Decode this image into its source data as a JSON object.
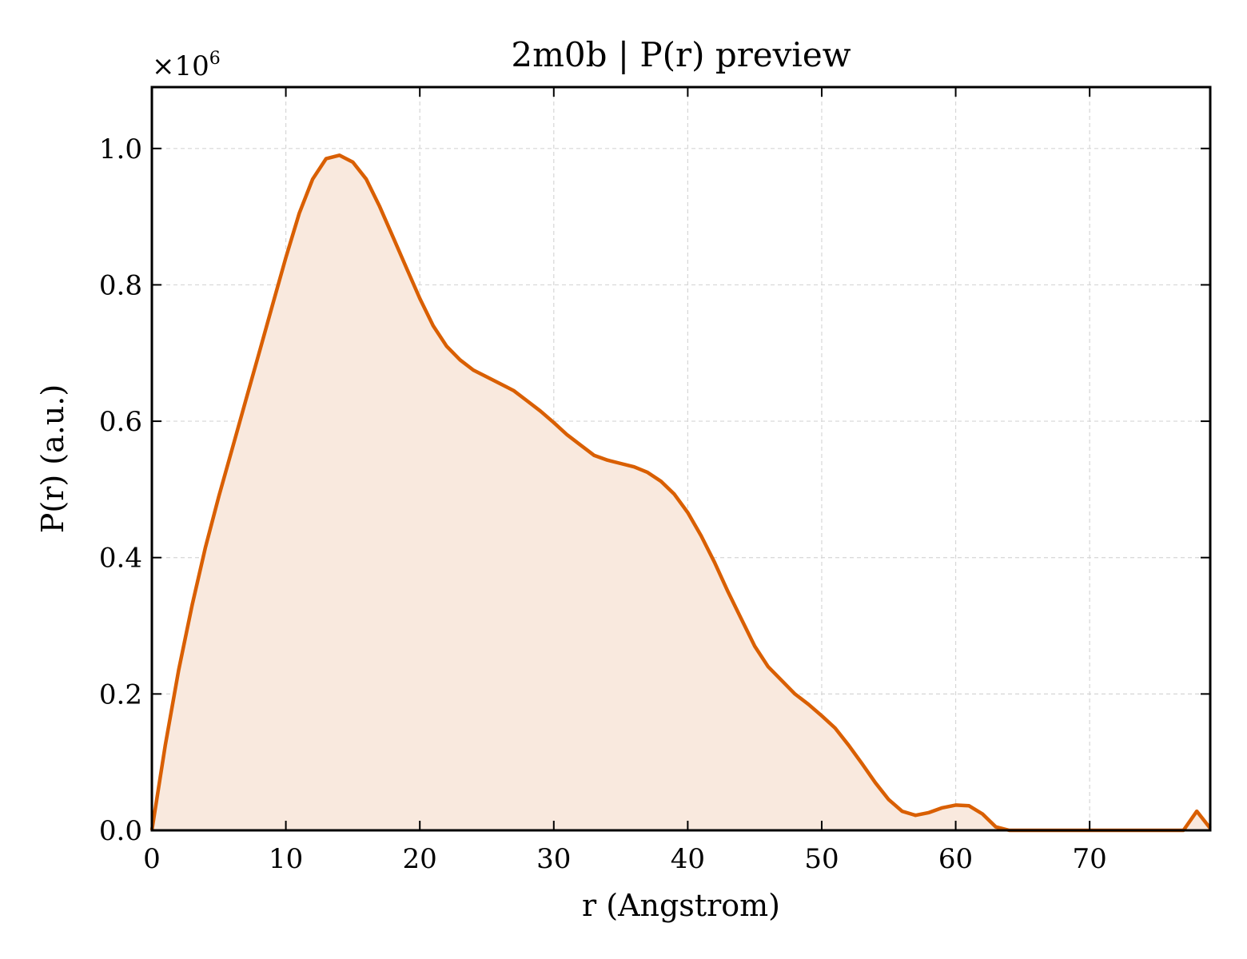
{
  "chart_data": {
    "type": "area",
    "title": "2m0b | P(r) preview",
    "xlabel": "r (Angstrom)",
    "ylabel": "P(r) (a.u.)",
    "y_multiplier": "×10",
    "y_multiplier_exp": "6",
    "xlim": [
      0,
      79
    ],
    "ylim": [
      0,
      1.09
    ],
    "xticks": [
      0,
      10,
      20,
      30,
      40,
      50,
      60,
      70
    ],
    "xtick_labels": [
      "0",
      "10",
      "20",
      "30",
      "40",
      "50",
      "60",
      "70"
    ],
    "yticks": [
      0.0,
      0.2,
      0.4,
      0.6,
      0.8,
      1.0
    ],
    "ytick_labels": [
      "0.0",
      "0.2",
      "0.4",
      "0.6",
      "0.8",
      "1.0"
    ],
    "grid": true,
    "line_color": "#d95f02",
    "fill_color": "#f9e9de",
    "x": [
      0,
      1,
      2,
      3,
      4,
      5,
      6,
      7,
      8,
      9,
      10,
      11,
      12,
      13,
      14,
      15,
      16,
      17,
      18,
      19,
      20,
      21,
      22,
      23,
      24,
      25,
      26,
      27,
      28,
      29,
      30,
      31,
      32,
      33,
      34,
      35,
      36,
      37,
      38,
      39,
      40,
      41,
      42,
      43,
      44,
      45,
      46,
      47,
      48,
      49,
      50,
      51,
      52,
      53,
      54,
      55,
      56,
      57,
      58,
      59,
      60,
      61,
      62,
      63,
      64,
      65,
      66,
      67,
      68,
      69,
      70,
      71,
      72,
      73,
      74,
      75,
      76,
      77,
      78,
      79
    ],
    "y": [
      0.0,
      0.125,
      0.235,
      0.33,
      0.415,
      0.49,
      0.56,
      0.63,
      0.7,
      0.77,
      0.84,
      0.905,
      0.955,
      0.985,
      0.99,
      0.98,
      0.955,
      0.915,
      0.87,
      0.825,
      0.78,
      0.74,
      0.71,
      0.69,
      0.675,
      0.665,
      0.655,
      0.645,
      0.63,
      0.615,
      0.598,
      0.58,
      0.565,
      0.55,
      0.543,
      0.538,
      0.533,
      0.525,
      0.512,
      0.493,
      0.466,
      0.432,
      0.393,
      0.35,
      0.31,
      0.27,
      0.24,
      0.22,
      0.2,
      0.185,
      0.168,
      0.15,
      0.125,
      0.098,
      0.07,
      0.045,
      0.028,
      0.022,
      0.026,
      0.033,
      0.037,
      0.036,
      0.024,
      0.005,
      0.0,
      0.0,
      0.0,
      0.0,
      0.0,
      0.0,
      0.0,
      0.0,
      0.0,
      0.0,
      0.0,
      0.0,
      0.0,
      0.0,
      0.028,
      0.003
    ]
  }
}
